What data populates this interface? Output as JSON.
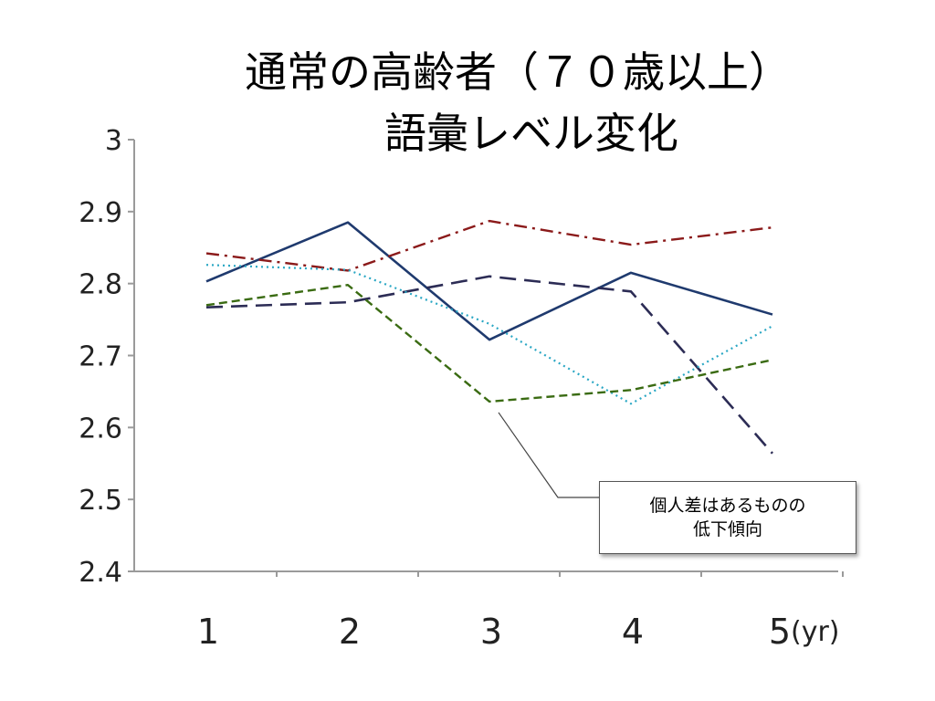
{
  "chart_data": {
    "type": "line",
    "title_lines": [
      "通常の高齢者（７０歳以上）",
      "語彙レベル変化"
    ],
    "x": [
      1,
      2,
      3,
      4,
      5
    ],
    "x_tick_labels": [
      "1",
      "2",
      "3",
      "4",
      "5"
    ],
    "x_unit": "(yr)",
    "ylim": [
      2.4,
      3.0
    ],
    "y_ticks": [
      "3",
      "2.9",
      "2.8",
      "2.7",
      "2.6",
      "2.5",
      "2.4"
    ],
    "grid": false,
    "series": [
      {
        "values": [
          2.803,
          2.885,
          2.722,
          2.815,
          2.757
        ],
        "color": "#1f3a6e",
        "dash": "solid"
      },
      {
        "values": [
          2.842,
          2.818,
          2.887,
          2.854,
          2.878
        ],
        "color": "#8b1a1a",
        "dash": "dash-dot"
      },
      {
        "values": [
          2.767,
          2.774,
          2.81,
          2.789,
          2.564
        ],
        "color": "#2c2c55",
        "dash": "long-dash"
      },
      {
        "values": [
          2.826,
          2.819,
          2.744,
          2.633,
          2.741
        ],
        "color": "#2aa7c4",
        "dash": "dot"
      },
      {
        "values": [
          2.77,
          2.798,
          2.636,
          2.652,
          2.694
        ],
        "color": "#3a6b12",
        "dash": "dash"
      }
    ],
    "annotation": {
      "lines": [
        "個人差はあるものの",
        "低下傾向"
      ],
      "points_to": {
        "x": 3,
        "y": 2.636
      }
    }
  }
}
